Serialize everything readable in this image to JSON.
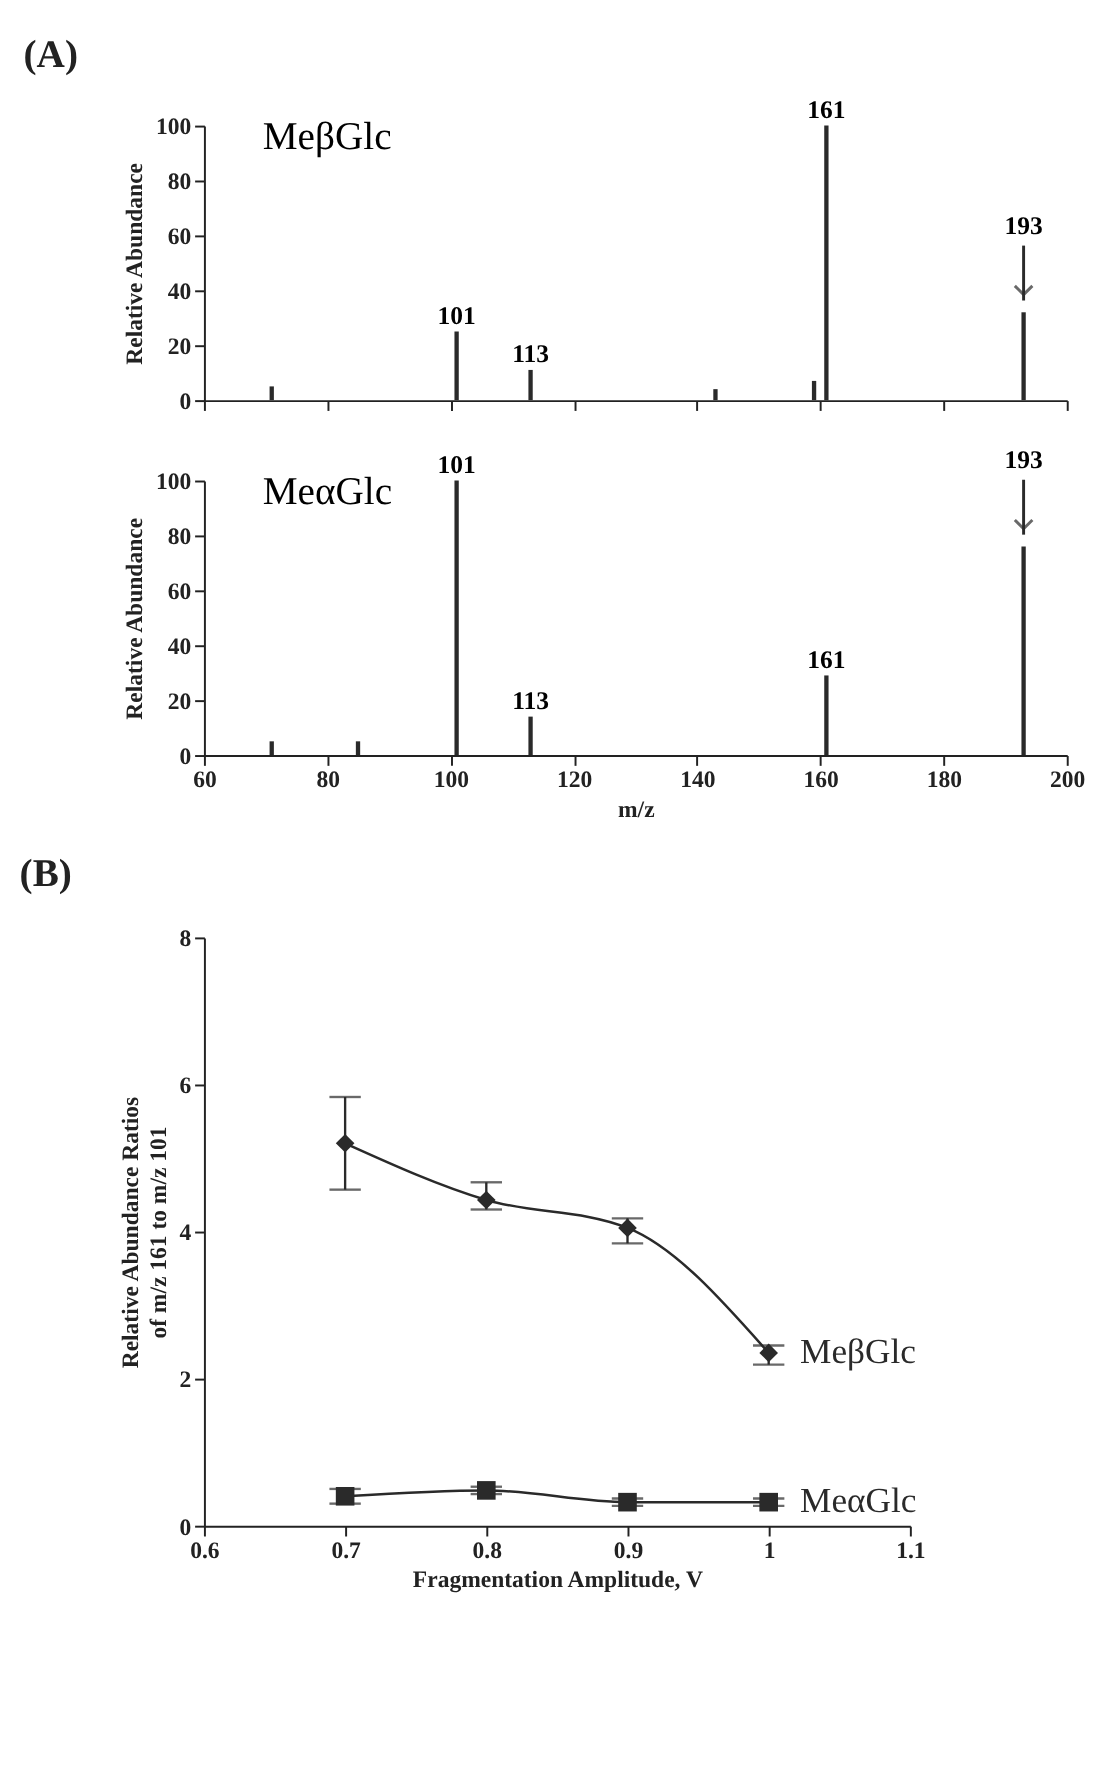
{
  "chart_data": [
    {
      "type": "bar",
      "title": "(A)",
      "ylabel": "Relative Abundance",
      "tick_labels": "y",
      "x": [
        71,
        101,
        113,
        143,
        159,
        161,
        193
      ],
      "values": [
        5,
        25,
        11,
        4,
        7,
        100,
        32
      ],
      "color": "#2a2a2a",
      "xlim": [
        60,
        200
      ],
      "xticks": [
        60,
        80,
        100,
        120,
        140,
        160,
        180,
        200
      ],
      "ylim": [
        0,
        100
      ],
      "yticks": [
        0,
        20,
        40,
        60,
        80,
        100
      ],
      "annotations": [
        "MeβGlc",
        {
          "text": "101",
          "x": 101,
          "y": 25
        },
        {
          "text": "113",
          "x": 113,
          "y": 11
        },
        {
          "text": "161",
          "x": 161,
          "y": 100
        },
        {
          "text": "193",
          "x": 193,
          "y": 32
        }
      ]
    },
    {
      "type": "bar",
      "xlabel": "m/z",
      "ylabel": "Relative Abundance",
      "x": [
        71,
        85,
        101,
        113,
        161,
        193
      ],
      "values": [
        5,
        5,
        100,
        14,
        29,
        76
      ],
      "color": "#2a2a2a",
      "xlim": [
        60,
        200
      ],
      "xticks": [
        60,
        80,
        100,
        120,
        140,
        160,
        180,
        200
      ],
      "ylim": [
        0,
        100
      ],
      "yticks": [
        0,
        20,
        40,
        60,
        80,
        100
      ],
      "annotations": [
        "MeαGlc",
        {
          "text": "101",
          "x": 101,
          "y": 100
        },
        {
          "text": "113",
          "x": 113,
          "y": 14
        },
        {
          "text": "161",
          "x": 161,
          "y": 29
        },
        {
          "text": "193",
          "x": 193,
          "y": 76
        }
      ]
    },
    {
      "type": "line",
      "title": "(B)",
      "xlabel": "Fragmentation Amplitude, V",
      "ylabel": "Relative Abundance Ratios\nof m/z 161 to m/z 101",
      "x": [
        0.7,
        0.8,
        0.9,
        1
      ],
      "xlim": [
        0.6,
        1.1
      ],
      "xticks": [
        0.6,
        0.7,
        0.8,
        0.9,
        1,
        1.1
      ],
      "ylim": [
        0,
        8
      ],
      "yticks": [
        0,
        2,
        4,
        6,
        8
      ],
      "series": [
        {
          "name": "MeβGlc",
          "color": "#2a2a2a",
          "marker": "diamond",
          "values": [
            5.2,
            4.43,
            4.05,
            2.35
          ],
          "errors": [
            [
              4.57,
              5.83
            ],
            [
              4.3,
              4.67
            ],
            [
              3.84,
              4.18
            ],
            [
              2.19,
              2.45
            ]
          ]
        },
        {
          "name": "MeαGlc",
          "color": "#2a2a2a",
          "marker": "square",
          "values": [
            0.4,
            0.48,
            0.32,
            0.32
          ],
          "errors": [
            0.1,
            0.05,
            0.05,
            0.05
          ]
        }
      ]
    }
  ]
}
